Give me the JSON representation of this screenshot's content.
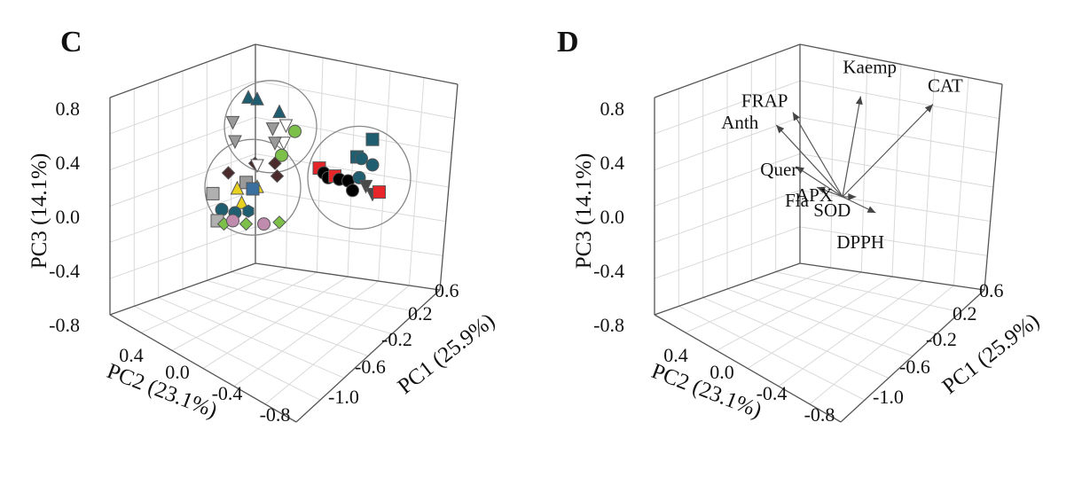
{
  "chart_data": [
    {
      "panel": "C",
      "type": "scatter",
      "axes": {
        "x": {
          "label": "PC1 (25.9%)",
          "ticks": [
            "-1.0",
            "-0.6",
            "-0.2",
            "0.2",
            "0.6"
          ],
          "range": [
            -1.0,
            0.6
          ]
        },
        "y": {
          "label": "PC2 (23.1%)",
          "ticks": [
            "0.4",
            "0.0",
            "-0.4",
            "-0.8"
          ],
          "range": [
            0.6,
            -0.8
          ]
        },
        "z": {
          "label": "PC3 (14.1%)",
          "ticks": [
            "0.8",
            "0.4",
            "0.0",
            "-0.4",
            "-0.8"
          ],
          "range": [
            -0.8,
            0.8
          ]
        }
      },
      "grid": true,
      "legend": "none",
      "clusters": [
        {
          "center": [
            0.06,
            0.54
          ]
        },
        {
          "center": [
            -0.02,
            0.16
          ]
        },
        {
          "center": [
            0.46,
            0.22
          ]
        }
      ],
      "points": [
        {
          "x": -0.04,
          "y": 0.72,
          "marker": "triangle-up",
          "color": "#1e5e70"
        },
        {
          "x": 0.0,
          "y": 0.71,
          "marker": "triangle-up",
          "color": "#1e5e70"
        },
        {
          "x": 0.1,
          "y": 0.63,
          "marker": "triangle-up",
          "color": "#1e5e70"
        },
        {
          "x": -0.11,
          "y": 0.57,
          "marker": "triangle-down",
          "color": "#9a9a9a"
        },
        {
          "x": 0.07,
          "y": 0.53,
          "marker": "triangle-down",
          "color": "#9a9a9a"
        },
        {
          "x": 0.13,
          "y": 0.55,
          "marker": "triangle-down",
          "color": "#ffffff"
        },
        {
          "x": 0.17,
          "y": 0.51,
          "marker": "circle",
          "color": "#7cc04a"
        },
        {
          "x": -0.1,
          "y": 0.45,
          "marker": "triangle-down",
          "color": "#9a9a9a"
        },
        {
          "x": 0.12,
          "y": 0.44,
          "marker": "triangle-down",
          "color": "#ffffff"
        },
        {
          "x": 0.11,
          "y": 0.36,
          "marker": "circle",
          "color": "#7cc04a"
        },
        {
          "x": 0.08,
          "y": 0.44,
          "marker": "triangle-down",
          "color": "#9a9a9a"
        },
        {
          "x": -0.01,
          "y": 0.31,
          "marker": "diamond",
          "color": "#4a2a2a"
        },
        {
          "x": 0.0,
          "y": 0.3,
          "marker": "triangle-down",
          "color": "#ffffff"
        },
        {
          "x": 0.08,
          "y": 0.31,
          "marker": "diamond",
          "color": "#4a2a2a"
        },
        {
          "x": -0.13,
          "y": 0.25,
          "marker": "diamond",
          "color": "#4a2a2a"
        },
        {
          "x": 0.09,
          "y": 0.23,
          "marker": "diamond",
          "color": "#4a2a2a"
        },
        {
          "x": -0.05,
          "y": 0.19,
          "marker": "square",
          "color": "#9a9a9a"
        },
        {
          "x": 0.0,
          "y": 0.16,
          "marker": "triangle-up",
          "color": "#e8d21f"
        },
        {
          "x": -0.09,
          "y": 0.15,
          "marker": "triangle-up",
          "color": "#e8d21f"
        },
        {
          "x": -0.02,
          "y": 0.15,
          "marker": "square",
          "color": "#3a6fa0"
        },
        {
          "x": -0.2,
          "y": 0.12,
          "marker": "square",
          "color": "#b0b0b0"
        },
        {
          "x": -0.07,
          "y": 0.06,
          "marker": "triangle-up",
          "color": "#e8d21f"
        },
        {
          "x": -0.16,
          "y": 0.02,
          "marker": "circle",
          "color": "#1e5e70"
        },
        {
          "x": -0.1,
          "y": 0.0,
          "marker": "circle",
          "color": "#1e5e70"
        },
        {
          "x": -0.04,
          "y": 0.01,
          "marker": "hexagon",
          "color": "#1e5e70"
        },
        {
          "x": -0.18,
          "y": -0.05,
          "marker": "square",
          "color": "#b0b0b0"
        },
        {
          "x": -0.15,
          "y": -0.07,
          "marker": "diamond",
          "color": "#7cc04a"
        },
        {
          "x": -0.11,
          "y": -0.05,
          "marker": "circle",
          "color": "#c08cae"
        },
        {
          "x": -0.05,
          "y": -0.07,
          "marker": "diamond",
          "color": "#7cc04a"
        },
        {
          "x": 0.03,
          "y": -0.07,
          "marker": "circle",
          "color": "#c08cae"
        },
        {
          "x": 0.1,
          "y": -0.06,
          "marker": "diamond",
          "color": "#7cc04a"
        },
        {
          "x": 0.52,
          "y": 0.46,
          "marker": "square",
          "color": "#1e5e70"
        },
        {
          "x": 0.45,
          "y": 0.35,
          "marker": "square",
          "color": "#1e5e70"
        },
        {
          "x": 0.47,
          "y": 0.34,
          "marker": "circle",
          "color": "#1e5e70"
        },
        {
          "x": 0.52,
          "y": 0.3,
          "marker": "circle",
          "color": "#1e5e70"
        },
        {
          "x": 0.28,
          "y": 0.28,
          "marker": "square",
          "color": "#e8262a"
        },
        {
          "x": 0.3,
          "y": 0.25,
          "marker": "circle",
          "color": "#000000"
        },
        {
          "x": 0.32,
          "y": 0.22,
          "marker": "circle",
          "color": "#000000"
        },
        {
          "x": 0.35,
          "y": 0.23,
          "marker": "square",
          "color": "#e8262a"
        },
        {
          "x": 0.37,
          "y": 0.21,
          "marker": "circle",
          "color": "#000000"
        },
        {
          "x": 0.41,
          "y": 0.2,
          "marker": "circle",
          "color": "#000000"
        },
        {
          "x": 0.46,
          "y": 0.22,
          "marker": "circle",
          "color": "#1e5e70"
        },
        {
          "x": 0.49,
          "y": 0.17,
          "marker": "triangle-down",
          "color": "#4a4a4a"
        },
        {
          "x": 0.43,
          "y": 0.14,
          "marker": "circle",
          "color": "#000000"
        },
        {
          "x": 0.52,
          "y": 0.12,
          "marker": "triangle-down",
          "color": "#4a4a4a"
        },
        {
          "x": 0.55,
          "y": 0.13,
          "marker": "square",
          "color": "#e8262a"
        }
      ]
    },
    {
      "panel": "D",
      "type": "biplot",
      "axes": {
        "x": {
          "label": "PC1 (25.9%)",
          "ticks": [
            "-1.0",
            "-0.6",
            "-0.2",
            "0.2",
            "0.6"
          ],
          "range": [
            -1.0,
            0.6
          ]
        },
        "y": {
          "label": "PC2 (23.1%)",
          "ticks": [
            "0.4",
            "0.0",
            "-0.4",
            "-0.8"
          ],
          "range": [
            0.6,
            -0.8
          ]
        },
        "z": {
          "label": "PC3 (14.1%)",
          "ticks": [
            "0.8",
            "0.4",
            "0.0",
            "-0.4",
            "-0.8"
          ],
          "range": [
            -0.8,
            0.8
          ]
        }
      },
      "grid": true,
      "origin_label": "APX",
      "vectors": [
        {
          "label": "Kaemp",
          "end": [
            0.12,
            0.73
          ]
        },
        {
          "label": "CAT",
          "end": [
            0.6,
            0.68
          ]
        },
        {
          "label": "FRAP",
          "end": [
            -0.33,
            0.63
          ]
        },
        {
          "label": "Anth",
          "end": [
            -0.44,
            0.55
          ]
        },
        {
          "label": "Quer",
          "end": [
            -0.31,
            0.29
          ]
        },
        {
          "label": "Fla",
          "end": [
            -0.17,
            0.16
          ]
        },
        {
          "label": "SOD",
          "end": [
            0.09,
            0.1
          ]
        },
        {
          "label": "DPPH",
          "end": [
            0.22,
            0.0
          ]
        }
      ]
    }
  ],
  "panel_labels": [
    "C",
    "D"
  ]
}
